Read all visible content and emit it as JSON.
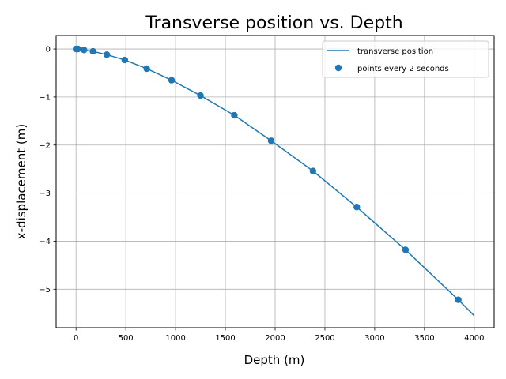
{
  "chart_data": {
    "type": "scatter",
    "title": "Transverse position vs. Depth",
    "xlabel": "Depth (m)",
    "ylabel": "x-displacement (m)",
    "xlim": [
      -200,
      4200
    ],
    "ylim": [
      -5.8,
      0.28
    ],
    "xticks": [
      0,
      500,
      1000,
      1500,
      2000,
      2500,
      3000,
      3500,
      4000
    ],
    "xtick_labels": [
      "0",
      "500",
      "1000",
      "1500",
      "2000",
      "2500",
      "3000",
      "3500",
      "4000"
    ],
    "yticks": [
      0,
      -1,
      -2,
      -3,
      -4,
      -5
    ],
    "ytick_labels": [
      "0",
      "−1",
      "−2",
      "−3",
      "−4",
      "−5"
    ],
    "grid": true,
    "legend_position": "top-right",
    "colors": {
      "series": "#1f77b4",
      "grid": "#b0b0b0",
      "axes": "#000000"
    },
    "series": [
      {
        "name": "transverse position",
        "kind": "line",
        "x": [
          0,
          10,
          20,
          40,
          80,
          170,
          310,
          490,
          710,
          960,
          1250,
          1590,
          1960,
          2380,
          2820,
          3310,
          3840,
          4000
        ],
        "y": [
          0,
          0,
          0,
          0,
          -0.02,
          -0.05,
          -0.12,
          -0.23,
          -0.41,
          -0.65,
          -0.97,
          -1.38,
          -1.91,
          -2.54,
          -3.29,
          -4.18,
          -5.22,
          -5.55
        ]
      },
      {
        "name": "points every 2 seconds",
        "kind": "scatter",
        "x": [
          0,
          10,
          20,
          80,
          170,
          310,
          490,
          710,
          960,
          1250,
          1590,
          1960,
          2380,
          2820,
          3310,
          3840
        ],
        "y": [
          0,
          0,
          0,
          -0.02,
          -0.05,
          -0.12,
          -0.23,
          -0.41,
          -0.65,
          -0.97,
          -1.38,
          -1.91,
          -2.54,
          -3.29,
          -4.18,
          -5.22
        ]
      }
    ]
  }
}
